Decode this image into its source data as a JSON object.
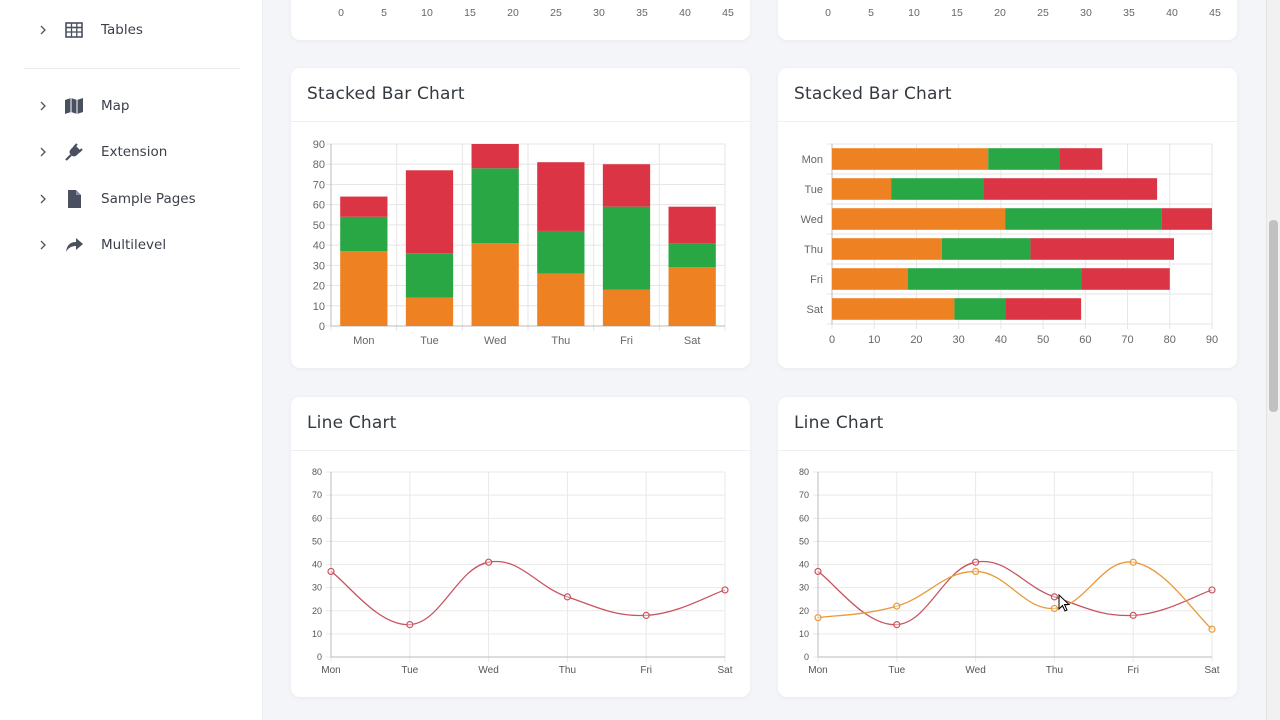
{
  "sidebar": {
    "items": [
      {
        "label": "Tables",
        "icon": "table-icon"
      },
      {
        "label": "Map",
        "icon": "map-icon"
      },
      {
        "label": "Extension",
        "icon": "plug-icon"
      },
      {
        "label": "Sample Pages",
        "icon": "file-icon"
      },
      {
        "label": "Multilevel",
        "icon": "share-icon"
      }
    ]
  },
  "colors": {
    "orange": "#ee8122",
    "green": "#29a744",
    "red": "#db3545",
    "line_red": "#c8545f",
    "line_orange": "#e79a3a"
  },
  "top_axis_ticks": [
    "0",
    "5",
    "10",
    "15",
    "20",
    "25",
    "30",
    "35",
    "40",
    "45"
  ],
  "cards": {
    "stacked_v_title": "Stacked Bar Chart",
    "stacked_h_title": "Stacked Bar Chart",
    "line_single_title": "Line Chart",
    "line_double_title": "Line Chart"
  },
  "chart_data": [
    {
      "type": "bar",
      "orientation": "vertical",
      "stacked": true,
      "title": "Stacked Bar Chart",
      "categories": [
        "Mon",
        "Tue",
        "Wed",
        "Thu",
        "Fri",
        "Sat"
      ],
      "series": [
        {
          "color": "#ee8122",
          "values": [
            37,
            14,
            41,
            26,
            18,
            29
          ]
        },
        {
          "color": "#29a744",
          "values": [
            17,
            22,
            37,
            21,
            41,
            12
          ]
        },
        {
          "color": "#db3545",
          "values": [
            10,
            41,
            12,
            34,
            21,
            18
          ]
        }
      ],
      "ylim": [
        0,
        90
      ],
      "yticks": [
        0,
        10,
        20,
        30,
        40,
        50,
        60,
        70,
        80,
        90
      ],
      "grid": true
    },
    {
      "type": "bar",
      "orientation": "horizontal",
      "stacked": true,
      "title": "Stacked Bar Chart",
      "categories": [
        "Mon",
        "Tue",
        "Wed",
        "Thu",
        "Fri",
        "Sat"
      ],
      "series": [
        {
          "color": "#ee8122",
          "values": [
            37,
            14,
            41,
            26,
            18,
            29
          ]
        },
        {
          "color": "#29a744",
          "values": [
            17,
            22,
            37,
            21,
            41,
            12
          ]
        },
        {
          "color": "#db3545",
          "values": [
            10,
            41,
            12,
            34,
            21,
            18
          ]
        }
      ],
      "xlim": [
        0,
        90
      ],
      "xticks": [
        0,
        10,
        20,
        30,
        40,
        50,
        60,
        70,
        80,
        90
      ],
      "grid": true
    },
    {
      "type": "line",
      "title": "Line Chart",
      "categories": [
        "Mon",
        "Tue",
        "Wed",
        "Thu",
        "Fri",
        "Sat"
      ],
      "series": [
        {
          "color": "#c8545f",
          "values": [
            37,
            14,
            41,
            26,
            18,
            29
          ]
        }
      ],
      "ylim": [
        0,
        80
      ],
      "yticks": [
        0,
        10,
        20,
        30,
        40,
        50,
        60,
        70,
        80
      ],
      "grid": true,
      "smooth": true
    },
    {
      "type": "line",
      "title": "Line Chart",
      "categories": [
        "Mon",
        "Tue",
        "Wed",
        "Thu",
        "Fri",
        "Sat"
      ],
      "series": [
        {
          "color": "#c8545f",
          "values": [
            37,
            14,
            41,
            26,
            18,
            29
          ]
        },
        {
          "color": "#e79a3a",
          "values": [
            17,
            22,
            37,
            21,
            41,
            12
          ]
        }
      ],
      "ylim": [
        0,
        80
      ],
      "yticks": [
        0,
        10,
        20,
        30,
        40,
        50,
        60,
        70,
        80
      ],
      "grid": true,
      "smooth": true
    }
  ]
}
